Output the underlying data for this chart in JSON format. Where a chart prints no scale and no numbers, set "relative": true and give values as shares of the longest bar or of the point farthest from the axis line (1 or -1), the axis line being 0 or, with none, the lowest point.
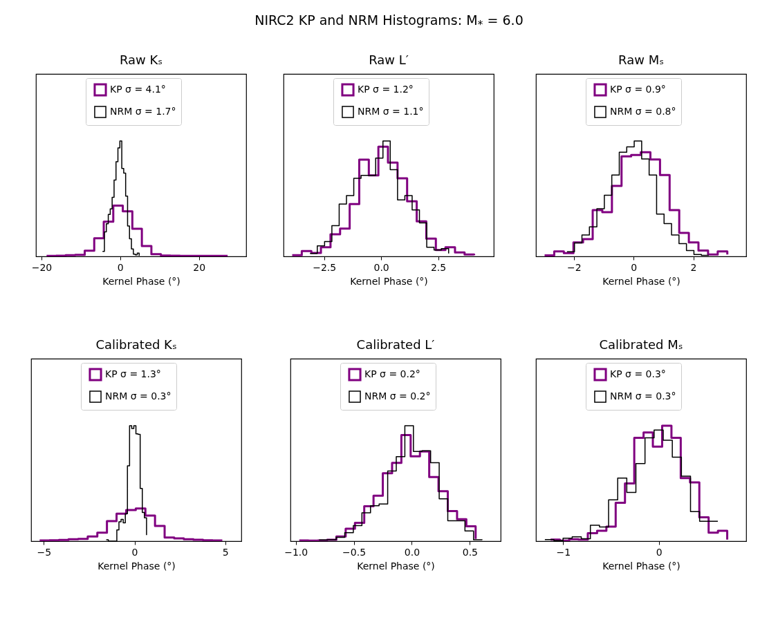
{
  "chart_data": [
    {
      "type": "step",
      "title": "Raw Kₛ",
      "xlabel": "Kernel Phase (°)",
      "relative": true,
      "legend": "top",
      "annotations": [
        "NIRC2 KP and NRM Histograms: M$_{*}$ = 6.0"
      ],
      "xlim": [
        -21.4,
        32
      ],
      "xticks": [
        {
          "value": -20,
          "label": "−20"
        },
        {
          "value": 0,
          "label": "0"
        },
        {
          "value": 20,
          "label": "20"
        }
      ],
      "series": [
        {
          "name": "KP σ = 4.1°",
          "color": "#800080",
          "x": [
            -18.7,
            -16.28,
            -13.86,
            -11.44,
            -9.02,
            -6.6,
            -4.18,
            -1.76,
            0.66,
            3.08,
            5.5,
            7.92,
            10.34,
            12.76,
            15.18,
            17.6,
            20.02,
            22.44,
            24.86,
            27.28
          ],
          "values": [
            0.004,
            0.006,
            0.01,
            0.014,
            0.05,
            0.157,
            0.3,
            0.44,
            0.39,
            0.24,
            0.09,
            0.02,
            0.008,
            0.006,
            0.005,
            0.004,
            0.004,
            0.004,
            0.004,
            0.004
          ]
        },
        {
          "name": "NRM σ = 1.7°",
          "color": "#000000",
          "x": [
            -4.5,
            -4.01,
            -3.52,
            -3.03,
            -2.54,
            -2.05,
            -1.56,
            -1.07,
            -0.58,
            -0.09,
            0.4,
            0.89,
            1.38,
            1.87,
            2.36,
            2.85,
            3.34,
            3.83,
            4.32,
            4.81
          ],
          "values": [
            0.044,
            0.213,
            0.283,
            0.363,
            0.412,
            0.512,
            0.661,
            0.82,
            0.94,
            1.0,
            0.761,
            0.721,
            0.522,
            0.263,
            0.153,
            0.064,
            0.02,
            0.014,
            0.028,
            0.004
          ]
        }
      ]
    },
    {
      "type": "step",
      "title": "Raw L′",
      "xlabel": "Kernel Phase (°)",
      "relative": true,
      "legend": "top",
      "xlim": [
        -4.28,
        4.94
      ],
      "xticks": [
        {
          "value": -2.5,
          "label": "−2.5"
        },
        {
          "value": 0,
          "label": "0.0"
        },
        {
          "value": 2.5,
          "label": "2.5"
        }
      ],
      "series": [
        {
          "name": "KP σ = 1.2°",
          "color": "#800080",
          "x": [
            -3.9,
            -3.48,
            -3.06,
            -2.64,
            -2.22,
            -1.8,
            -1.38,
            -0.96,
            -0.54,
            -0.12,
            0.3,
            0.72,
            1.14,
            1.56,
            1.98,
            2.4,
            2.82,
            3.24,
            3.66,
            4.08
          ],
          "values": [
            0.01,
            0.047,
            0.03,
            0.08,
            0.192,
            0.241,
            0.453,
            0.838,
            0.701,
            0.95,
            0.813,
            0.677,
            0.478,
            0.303,
            0.154,
            0.055,
            0.08,
            0.035,
            0.017,
            0.01
          ]
        },
        {
          "name": "NRM σ = 1.1°",
          "color": "#000000",
          "x": [
            -3.12,
            -2.8,
            -2.48,
            -2.16,
            -1.84,
            -1.52,
            -1.2,
            -0.88,
            -0.56,
            -0.24,
            0.08,
            0.4,
            0.72,
            1.04,
            1.36,
            1.68,
            2.0,
            2.32,
            2.64,
            2.96
          ],
          "values": [
            0.025,
            0.092,
            0.129,
            0.266,
            0.453,
            0.527,
            0.677,
            0.701,
            0.701,
            0.851,
            1.0,
            0.751,
            0.49,
            0.527,
            0.403,
            0.291,
            0.08,
            0.055,
            0.067,
            0.025
          ]
        }
      ]
    },
    {
      "type": "step",
      "title": "Raw Mₛ",
      "xlabel": "Kernel Phase (°)",
      "relative": true,
      "legend": "top",
      "xlim": [
        -3.27,
        3.77
      ],
      "xticks": [
        {
          "value": -2,
          "label": "−2"
        },
        {
          "value": 0,
          "label": "0"
        },
        {
          "value": 2,
          "label": "2"
        }
      ],
      "series": [
        {
          "name": "KP σ = 0.9°",
          "color": "#800080",
          "x": [
            -2.98,
            -2.658,
            -2.336,
            -2.014,
            -1.692,
            -1.37,
            -1.048,
            -0.726,
            -0.404,
            -0.082,
            0.24,
            0.562,
            0.884,
            1.206,
            1.528,
            1.85,
            2.172,
            2.494,
            2.816,
            3.138
          ],
          "values": [
            0.009,
            0.044,
            0.028,
            0.121,
            0.149,
            0.401,
            0.383,
            0.611,
            0.867,
            0.879,
            0.902,
            0.839,
            0.704,
            0.401,
            0.203,
            0.121,
            0.051,
            0.016,
            0.044,
            0.016
          ]
        },
        {
          "name": "NRM σ = 0.8°",
          "color": "#000000",
          "x": [
            -2.23,
            -1.98,
            -1.73,
            -1.48,
            -1.23,
            -0.98,
            -0.73,
            -0.48,
            -0.23,
            0.02,
            0.27,
            0.52,
            0.77,
            1.02,
            1.27,
            1.52,
            1.77,
            2.02,
            2.27,
            2.52
          ],
          "values": [
            0.04,
            0.117,
            0.186,
            0.256,
            0.413,
            0.529,
            0.704,
            0.902,
            0.949,
            1.0,
            0.844,
            0.704,
            0.366,
            0.284,
            0.186,
            0.11,
            0.051,
            0.016,
            0.009,
            0.009
          ]
        }
      ]
    },
    {
      "type": "step",
      "title": "Calibrated Kₛ",
      "xlabel": "Kernel Phase (°)",
      "relative": true,
      "legend": "top",
      "xlim": [
        -5.7,
        5.89
      ],
      "xticks": [
        {
          "value": -5,
          "label": "−5"
        },
        {
          "value": 0,
          "label": "0"
        },
        {
          "value": 5,
          "label": "5"
        }
      ],
      "series": [
        {
          "name": "KP σ = 1.3°",
          "color": "#800080",
          "x": [
            -5.23,
            -4.7,
            -4.17,
            -3.64,
            -3.11,
            -2.58,
            -2.05,
            -1.52,
            -0.99,
            -0.46,
            0.07,
            0.6,
            1.13,
            1.66,
            2.19,
            2.72,
            3.25,
            3.78,
            4.31,
            4.84
          ],
          "values": [
            0.006,
            0.008,
            0.01,
            0.016,
            0.02,
            0.04,
            0.073,
            0.174,
            0.238,
            0.269,
            0.283,
            0.222,
            0.131,
            0.032,
            0.024,
            0.016,
            0.012,
            0.008,
            0.006,
            0.006
          ]
        },
        {
          "name": "NRM σ = 0.3°",
          "color": "#000000",
          "x": [
            -1.56,
            -1.443,
            -1.326,
            -1.209,
            -1.092,
            -0.975,
            -0.858,
            -0.741,
            -0.624,
            -0.507,
            -0.39,
            -0.273,
            -0.156,
            -0.039,
            0.078,
            0.195,
            0.312,
            0.429,
            0.546,
            0.663
          ],
          "values": [
            0.012,
            0,
            0,
            0,
            0,
            0.097,
            0.168,
            0.188,
            0.158,
            0.238,
            0.653,
            1.0,
            0.976,
            1.0,
            0.929,
            0.925,
            0.457,
            0.248,
            0.202,
            0.053
          ]
        }
      ]
    },
    {
      "type": "step",
      "title": "Calibrated L′",
      "xlabel": "Kernel Phase (°)",
      "relative": true,
      "legend": "top",
      "xlim": [
        -1.046,
        0.766
      ],
      "xticks": [
        {
          "value": -1,
          "label": "−1.0"
        },
        {
          "value": -0.5,
          "label": "−0.5"
        },
        {
          "value": 0,
          "label": "0.0"
        },
        {
          "value": 0.5,
          "label": "0.5"
        }
      ],
      "series": [
        {
          "name": "KP σ = 0.2°",
          "color": "#800080",
          "x": [
            -0.97,
            -0.89,
            -0.81,
            -0.73,
            -0.65,
            -0.57,
            -0.49,
            -0.41,
            -0.33,
            -0.25,
            -0.17,
            -0.09,
            -0.01,
            0.07,
            0.15,
            0.23,
            0.31,
            0.39,
            0.47,
            0.55
          ],
          "values": [
            0.006,
            0.004,
            0.006,
            0.012,
            0.041,
            0.108,
            0.159,
            0.302,
            0.394,
            0.588,
            0.678,
            0.918,
            0.735,
            0.776,
            0.555,
            0.433,
            0.261,
            0.19,
            0.129,
            0.02
          ]
        },
        {
          "name": "NRM σ = 0.2°",
          "color": "#000000",
          "x": [
            -0.8,
            -0.726,
            -0.652,
            -0.578,
            -0.504,
            -0.43,
            -0.356,
            -0.282,
            -0.208,
            -0.134,
            -0.06,
            0.014,
            0.088,
            0.162,
            0.236,
            0.31,
            0.384,
            0.458,
            0.532,
            0.606
          ],
          "values": [
            0.01,
            0.012,
            0.033,
            0.073,
            0.135,
            0.245,
            0.306,
            0.322,
            0.608,
            0.731,
            1.0,
            0.776,
            0.782,
            0.68,
            0.367,
            0.176,
            0.176,
            0.088,
            0.012,
            0.01
          ]
        }
      ]
    },
    {
      "type": "step",
      "title": "Calibrated Mₛ",
      "xlabel": "Kernel Phase (°)",
      "relative": true,
      "legend": "top",
      "xlim": [
        -1.283,
        0.911
      ],
      "xticks": [
        {
          "value": -1,
          "label": "−1"
        },
        {
          "value": 0,
          "label": "0"
        }
      ],
      "series": [
        {
          "name": "KP σ = 0.3°",
          "color": "#800080",
          "x": [
            -1.13,
            -1.033,
            -0.936,
            -0.839,
            -0.742,
            -0.645,
            -0.548,
            -0.451,
            -0.354,
            -0.257,
            -0.16,
            -0.063,
            0.034,
            0.131,
            0.228,
            0.325,
            0.422,
            0.519,
            0.616,
            0.713
          ],
          "values": [
            0.013,
            0.004,
            0.017,
            0.013,
            0.069,
            0.09,
            0.126,
            0.332,
            0.5,
            0.895,
            0.941,
            0.819,
            1.0,
            0.895,
            0.546,
            0.508,
            0.206,
            0.074,
            0.09,
            0.013
          ]
        },
        {
          "name": "NRM σ = 0.3°",
          "color": "#000000",
          "x": [
            -1.19,
            -1.095,
            -1.0,
            -0.905,
            -0.81,
            -0.715,
            -0.62,
            -0.525,
            -0.43,
            -0.335,
            -0.24,
            -0.145,
            -0.05,
            0.045,
            0.14,
            0.235,
            0.33,
            0.425,
            0.52,
            0.615
          ],
          "values": [
            0.013,
            0.004,
            0.025,
            0.038,
            0.021,
            0.137,
            0.122,
            0.357,
            0.546,
            0.422,
            0.672,
            0.895,
            0.962,
            0.874,
            0.727,
            0.563,
            0.256,
            0.172,
            0.172,
            0.172
          ]
        }
      ]
    }
  ]
}
